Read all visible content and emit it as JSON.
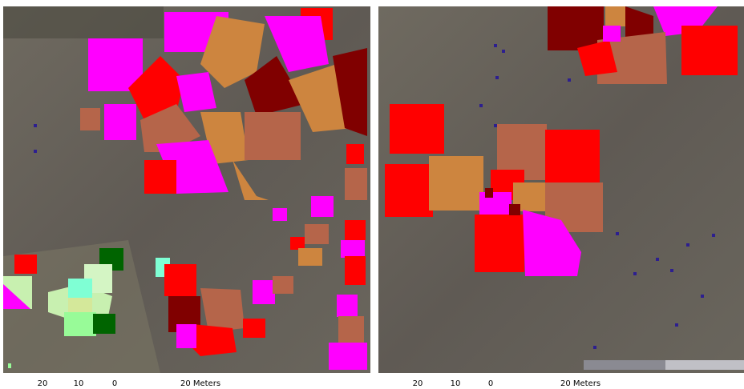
{
  "panels": [
    {
      "scale_bar": {
        "labels": [
          "20",
          "10",
          "0",
          "20 Meters"
        ]
      }
    },
    {
      "scale_bar": {
        "labels": [
          "20",
          "10",
          "0",
          "20 Meters"
        ]
      }
    }
  ]
}
